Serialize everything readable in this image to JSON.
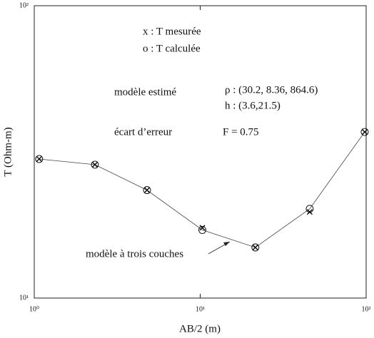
{
  "chart_data": {
    "type": "line",
    "xlabel": "AB/2 (m)",
    "ylabel": "T (Ohm-m)",
    "xscale": "log",
    "yscale": "log",
    "x": [
      1.07,
      2.32,
      4.78,
      10.3,
      21.5,
      45.7,
      98
    ],
    "series": [
      {
        "name": "x : T mesurée",
        "marker": "x",
        "color": "#000000",
        "values": [
          29.9,
          28.6,
          23.4,
          17.4,
          14.9,
          19.7,
          37.0
        ]
      },
      {
        "name": "o : T calculée",
        "marker": "o",
        "color": "#000000",
        "values": [
          29.9,
          28.6,
          23.4,
          17.1,
          14.9,
          20.2,
          37.0
        ]
      }
    ],
    "xlim": [
      1,
      100
    ],
    "ylim": [
      10,
      100
    ],
    "xticks": [
      {
        "value": 1,
        "label": "10⁰"
      },
      {
        "value": 10,
        "label": "10¹"
      },
      {
        "value": 100,
        "label": "10²"
      }
    ],
    "yticks": [
      {
        "value": 10,
        "label": "10¹"
      },
      {
        "value": 100,
        "label": "10²"
      }
    ],
    "annotations": [
      "modèle estimé",
      "ρ : (30.2, 8.36, 864.6)",
      "h : (3.6,21.5)",
      "écart d’erreur",
      "F = 0.75",
      "modèle à trois couches"
    ]
  }
}
